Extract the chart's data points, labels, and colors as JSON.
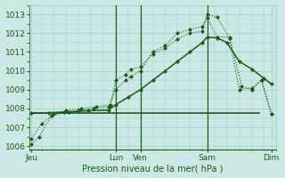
{
  "title": "Pression niveau de la mer( hPa )",
  "bg_color": "#cce8e4",
  "line_color": "#1a5c1a",
  "grid_color": "#9ecdc7",
  "xlim": [
    0,
    10
  ],
  "ylim": [
    1005.8,
    1013.5
  ],
  "yticks": [
    1006,
    1007,
    1008,
    1009,
    1010,
    1011,
    1012,
    1013
  ],
  "xtick_positions": [
    0.1,
    3.5,
    4.5,
    7.2,
    9.8
  ],
  "xtick_labels": [
    "Jeu",
    "Lun",
    "Ven",
    "Sam",
    "Dim"
  ],
  "vlines": [
    3.5,
    4.5,
    7.2
  ],
  "line1_dotted": {
    "x": [
      0.1,
      0.4,
      0.9,
      1.4,
      2.0,
      2.6,
      3.2,
      3.5,
      3.9,
      4.1,
      4.5,
      5.0,
      5.5,
      6.0,
      6.5,
      7.0,
      7.2,
      7.6,
      8.1,
      8.6,
      9.0,
      9.4,
      9.8
    ],
    "y": [
      1006.1,
      1006.5,
      1007.6,
      1007.8,
      1007.9,
      1008.0,
      1008.1,
      1009.0,
      1009.5,
      1009.7,
      1010.0,
      1011.0,
      1011.35,
      1012.0,
      1012.2,
      1012.35,
      1012.8,
      1011.8,
      1011.8,
      1009.2,
      1009.0,
      1009.5,
      1007.7
    ]
  },
  "line2_dotted": {
    "x": [
      0.1,
      0.5,
      1.0,
      1.5,
      2.1,
      2.7,
      3.3,
      3.5,
      3.9,
      4.1,
      4.5,
      5.0,
      5.5,
      6.0,
      6.5,
      7.0,
      7.2,
      7.6,
      8.1,
      8.5,
      9.0,
      9.4,
      9.8
    ],
    "y": [
      1006.4,
      1007.2,
      1007.7,
      1007.9,
      1008.0,
      1008.1,
      1008.2,
      1009.5,
      1009.8,
      1010.1,
      1010.2,
      1010.9,
      1011.2,
      1011.7,
      1012.0,
      1012.1,
      1013.0,
      1012.85,
      1011.75,
      1009.0,
      1009.1,
      1009.5,
      1007.7
    ]
  },
  "line3_solid": {
    "x": [
      0.1,
      0.8,
      1.6,
      2.4,
      3.2,
      3.5,
      4.0,
      4.5,
      5.0,
      5.5,
      6.0,
      6.5,
      7.0,
      7.2,
      7.6,
      8.0,
      8.5,
      9.0,
      9.5,
      9.8
    ],
    "y": [
      1007.75,
      1007.78,
      1007.82,
      1007.88,
      1007.92,
      1008.2,
      1008.6,
      1009.0,
      1009.5,
      1010.0,
      1010.5,
      1011.0,
      1011.5,
      1011.8,
      1011.75,
      1011.5,
      1010.5,
      1010.1,
      1009.6,
      1009.3
    ]
  },
  "line_flat": {
    "x": [
      0.1,
      9.3
    ],
    "y": [
      1007.75,
      1007.75
    ]
  }
}
